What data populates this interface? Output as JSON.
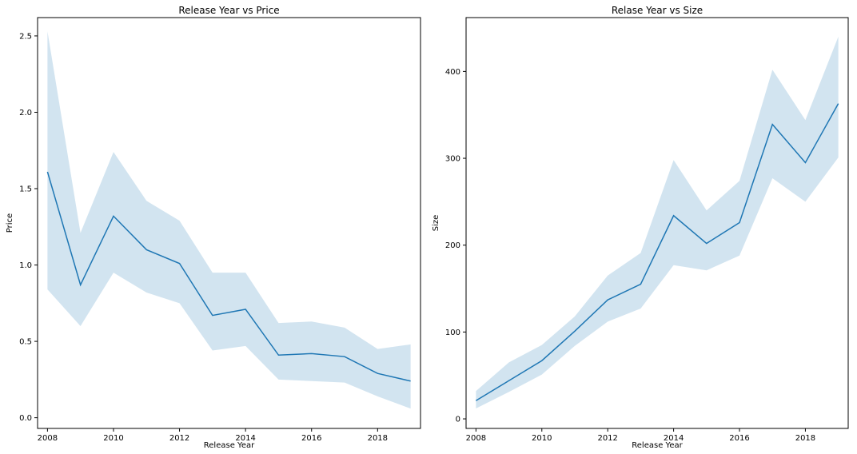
{
  "chart_data": [
    {
      "type": "line",
      "title": "Release Year vs Price",
      "xlabel": "Release Year",
      "ylabel": "Price",
      "xlim": [
        2007.7,
        2019.3
      ],
      "ylim": [
        -0.07,
        2.62
      ],
      "xticks": [
        2008,
        2010,
        2012,
        2014,
        2016,
        2018
      ],
      "yticks": [
        0.0,
        0.5,
        1.0,
        1.5,
        2.0,
        2.5
      ],
      "ytick_labels": [
        "0.0",
        "0.5",
        "1.0",
        "1.5",
        "2.0",
        "2.5"
      ],
      "grid": false,
      "x": [
        2008,
        2009,
        2010,
        2011,
        2012,
        2013,
        2014,
        2015,
        2016,
        2017,
        2018,
        2019
      ],
      "y": [
        1.61,
        0.87,
        1.32,
        1.1,
        1.01,
        0.67,
        0.71,
        0.41,
        0.42,
        0.4,
        0.29,
        0.24
      ],
      "ci_lower": [
        0.84,
        0.6,
        0.95,
        0.82,
        0.75,
        0.44,
        0.47,
        0.25,
        0.24,
        0.23,
        0.14,
        0.06
      ],
      "ci_upper": [
        2.53,
        1.21,
        1.74,
        1.42,
        1.29,
        0.95,
        0.95,
        0.62,
        0.63,
        0.59,
        0.45,
        0.48
      ]
    },
    {
      "type": "line",
      "title": "Relase Year vs Size",
      "xlabel": "Release Year",
      "ylabel": "Size",
      "xlim": [
        2007.7,
        2019.3
      ],
      "ylim": [
        -11,
        462
      ],
      "xticks": [
        2008,
        2010,
        2012,
        2014,
        2016,
        2018
      ],
      "yticks": [
        0,
        100,
        200,
        300,
        400
      ],
      "ytick_labels": [
        "0",
        "100",
        "200",
        "300",
        "400"
      ],
      "grid": false,
      "x": [
        2008,
        2009,
        2010,
        2011,
        2012,
        2013,
        2014,
        2015,
        2016,
        2017,
        2018,
        2019
      ],
      "y": [
        21,
        44,
        67,
        101,
        137,
        155,
        234,
        202,
        226,
        339,
        295,
        363
      ],
      "ci_lower": [
        12,
        31,
        51,
        84,
        112,
        127,
        177,
        171,
        188,
        277,
        250,
        301
      ],
      "ci_upper": [
        32,
        65,
        85,
        118,
        165,
        191,
        298,
        240,
        274,
        402,
        344,
        440
      ]
    }
  ],
  "colors": {
    "line": "#1f77b4",
    "band": "#1f77b4",
    "band_opacity": 0.2
  }
}
